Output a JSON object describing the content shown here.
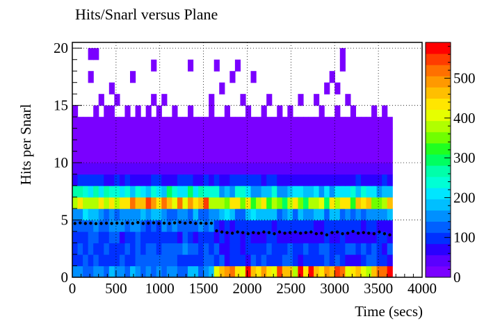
{
  "chart_data": {
    "type": "heatmap",
    "title": "Hits/Snarl versus Plane",
    "xlabel": "Time (secs)",
    "ylabel": "Hits per Snarl",
    "xlim": [
      0,
      4000
    ],
    "ylim": [
      0,
      20.5
    ],
    "x_ticks": [
      0,
      500,
      1000,
      1500,
      2000,
      2500,
      3000,
      3500,
      4000
    ],
    "y_ticks": [
      0,
      5,
      10,
      15,
      20
    ],
    "colorbar": {
      "min": 0,
      "max": 590,
      "ticks": [
        0,
        100,
        200,
        300,
        400,
        500
      ]
    },
    "grid": true,
    "bin_width_secs": 60,
    "time_extent_secs": [
      0,
      3660
    ],
    "rows": [
      {
        "y": 0,
        "z_first": 150,
        "z_second": 470
      },
      {
        "y": 1,
        "z_first": 110,
        "z_second": 100
      },
      {
        "y": 2,
        "z_first": 120,
        "z_second": 100
      },
      {
        "y": 3,
        "z_first": 100,
        "z_second": 80
      },
      {
        "y": 4,
        "z_first": 130,
        "z_second": 90
      },
      {
        "y": 5,
        "z_first": 160,
        "z_second": 160
      },
      {
        "y": 6,
        "z_first": 450,
        "z_second": 380
      },
      {
        "y": 7,
        "z_first": 230,
        "z_second": 200
      },
      {
        "y": 8,
        "z_first": 80,
        "z_second": 80
      },
      {
        "y": 9,
        "z_first": 45,
        "z_second": 45
      },
      {
        "y": 10,
        "z_first": 22,
        "z_second": 22
      },
      {
        "y": 11,
        "z_first": 10,
        "z_second": 10
      },
      {
        "y": 12,
        "z_first": 3,
        "z_second": 3
      },
      {
        "y": 13,
        "z_first": 1,
        "z_second": 1
      }
    ],
    "sparse_bins": [
      {
        "x": 0,
        "y": 14
      },
      {
        "x": 240,
        "y": 14
      },
      {
        "x": 360,
        "y": 14
      },
      {
        "x": 420,
        "y": 14
      },
      {
        "x": 600,
        "y": 14
      },
      {
        "x": 720,
        "y": 14
      },
      {
        "x": 840,
        "y": 14
      },
      {
        "x": 960,
        "y": 14
      },
      {
        "x": 1140,
        "y": 14
      },
      {
        "x": 1320,
        "y": 14
      },
      {
        "x": 1560,
        "y": 14
      },
      {
        "x": 1740,
        "y": 14
      },
      {
        "x": 1980,
        "y": 14
      },
      {
        "x": 2160,
        "y": 14
      },
      {
        "x": 2340,
        "y": 14
      },
      {
        "x": 2460,
        "y": 14
      },
      {
        "x": 2820,
        "y": 14
      },
      {
        "x": 3000,
        "y": 14
      },
      {
        "x": 3180,
        "y": 14
      },
      {
        "x": 3420,
        "y": 14
      },
      {
        "x": 3540,
        "y": 14
      },
      {
        "x": 300,
        "y": 15
      },
      {
        "x": 480,
        "y": 15
      },
      {
        "x": 900,
        "y": 15
      },
      {
        "x": 1020,
        "y": 15
      },
      {
        "x": 1560,
        "y": 15
      },
      {
        "x": 1920,
        "y": 15
      },
      {
        "x": 2220,
        "y": 15
      },
      {
        "x": 2580,
        "y": 15
      },
      {
        "x": 2760,
        "y": 15
      },
      {
        "x": 3120,
        "y": 15
      },
      {
        "x": 420,
        "y": 16
      },
      {
        "x": 1680,
        "y": 16
      },
      {
        "x": 2880,
        "y": 16
      },
      {
        "x": 3000,
        "y": 16
      },
      {
        "x": 180,
        "y": 17
      },
      {
        "x": 660,
        "y": 17
      },
      {
        "x": 1800,
        "y": 17
      },
      {
        "x": 2040,
        "y": 17
      },
      {
        "x": 2940,
        "y": 17
      },
      {
        "x": 900,
        "y": 18
      },
      {
        "x": 1320,
        "y": 18
      },
      {
        "x": 1620,
        "y": 18
      },
      {
        "x": 1860,
        "y": 18
      },
      {
        "x": 3060,
        "y": 18
      },
      {
        "x": 180,
        "y": 19
      },
      {
        "x": 240,
        "y": 19
      },
      {
        "x": 3060,
        "y": 19
      }
    ],
    "profile": {
      "x": [
        30,
        90,
        150,
        210,
        270,
        330,
        390,
        450,
        510,
        570,
        630,
        690,
        750,
        810,
        870,
        930,
        990,
        1050,
        1110,
        1170,
        1230,
        1290,
        1350,
        1410,
        1470,
        1530,
        1590,
        1650,
        1710,
        1770,
        1830,
        1890,
        1950,
        2010,
        2070,
        2130,
        2190,
        2250,
        2310,
        2370,
        2430,
        2490,
        2550,
        2610,
        2670,
        2730,
        2790,
        2850,
        2910,
        2970,
        3030,
        3090,
        3150,
        3210,
        3270,
        3330,
        3390,
        3450,
        3510,
        3570,
        3630
      ],
      "y": [
        4.7,
        4.75,
        4.7,
        4.72,
        4.68,
        4.7,
        4.72,
        4.7,
        4.73,
        4.7,
        4.75,
        4.7,
        4.78,
        4.7,
        4.72,
        4.75,
        4.7,
        4.73,
        4.7,
        4.75,
        4.8,
        4.72,
        4.78,
        4.7,
        4.73,
        4.7,
        4.72,
        4.05,
        3.95,
        3.9,
        3.85,
        3.95,
        3.9,
        3.8,
        3.9,
        3.85,
        3.95,
        3.9,
        3.8,
        3.95,
        3.85,
        3.9,
        3.95,
        3.85,
        3.9,
        3.95,
        3.8,
        3.85,
        3.7,
        3.9,
        3.95,
        3.8,
        3.85,
        4.0,
        3.85,
        3.9,
        3.85,
        3.8,
        3.95,
        3.8,
        3.7
      ]
    }
  }
}
